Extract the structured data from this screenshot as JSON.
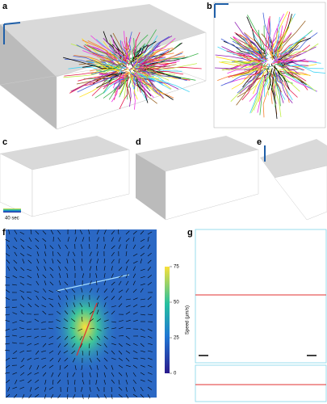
{
  "panel_labels": [
    "a",
    "b",
    "c",
    "d",
    "e",
    "f",
    "g"
  ],
  "panel_c": {
    "time_scale": "40 sec"
  },
  "panel_f": {
    "colorbar_label": "Speed (µm/s)",
    "colorbar_ticks": [
      0,
      25,
      50,
      75
    ]
  }
}
